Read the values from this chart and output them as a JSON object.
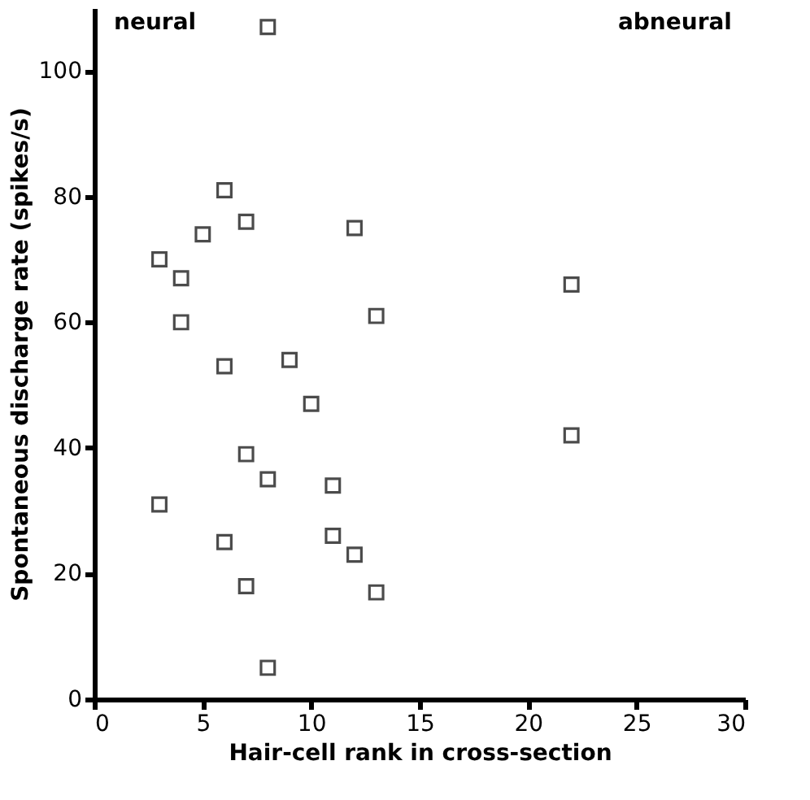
{
  "chart_data": {
    "type": "scatter",
    "xlabel": "Hair-cell rank in cross-section",
    "ylabel": "Spontaneous discharge rate (spikes/s)",
    "annotations": [
      "neural",
      "abneural"
    ],
    "x": [
      8,
      6,
      7,
      5,
      12,
      3,
      4,
      4,
      13,
      22,
      6,
      9,
      10,
      22,
      7,
      8,
      11,
      3,
      6,
      11,
      12,
      7,
      13,
      8
    ],
    "series": [
      {
        "color": "#000000",
        "values": [
          107,
          81,
          76,
          74,
          75,
          70,
          67,
          60,
          61,
          66,
          53,
          54,
          47,
          42,
          39,
          35,
          34,
          31,
          25,
          26,
          23,
          18,
          17,
          5
        ]
      }
    ],
    "xlim": [
      0,
      30
    ],
    "xticks": [
      0,
      5,
      10,
      15,
      20,
      25,
      30
    ],
    "ylim": [
      0,
      110
    ],
    "yticks": [
      0,
      20,
      40,
      60,
      80,
      100
    ],
    "grid": false,
    "marker": "square"
  }
}
